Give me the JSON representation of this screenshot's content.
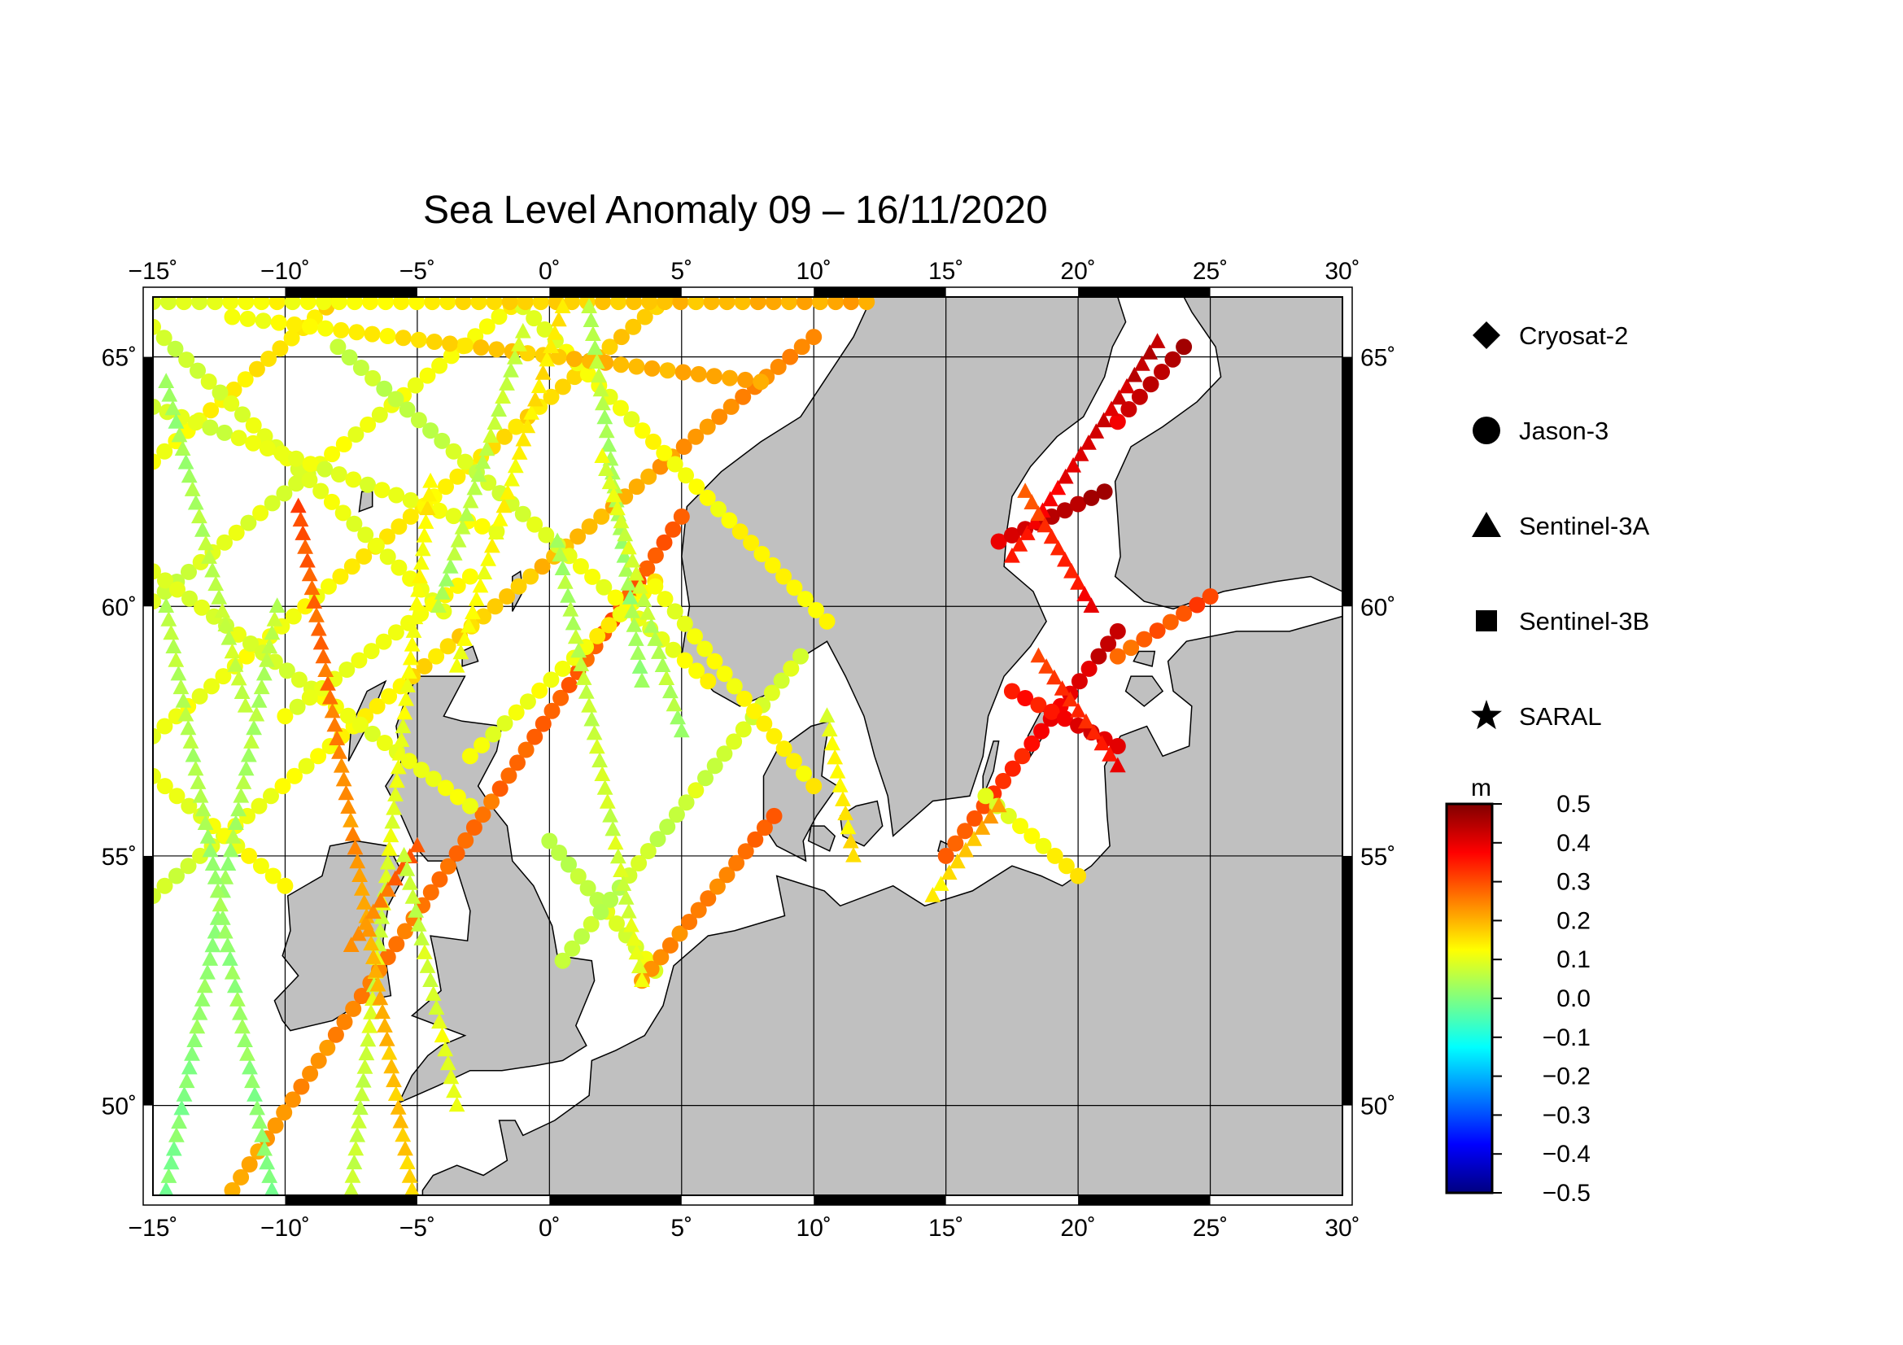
{
  "map": {
    "title": "Sea Level Anomaly 09 – 16/11/2020",
    "lon_range": [
      -15,
      30
    ],
    "lat_range": [
      48.2,
      66.2
    ],
    "lon_ticks": [
      {
        "value": -15,
        "label": "−15˚"
      },
      {
        "value": -10,
        "label": "−10˚"
      },
      {
        "value": -5,
        "label": "−5˚"
      },
      {
        "value": 0,
        "label": "0˚"
      },
      {
        "value": 5,
        "label": "5˚"
      },
      {
        "value": 10,
        "label": "10˚"
      },
      {
        "value": 15,
        "label": "15˚"
      },
      {
        "value": 20,
        "label": "20˚"
      },
      {
        "value": 25,
        "label": "25˚"
      },
      {
        "value": 30,
        "label": "30˚"
      }
    ],
    "lat_ticks": [
      {
        "value": 50,
        "label": "50˚"
      },
      {
        "value": 55,
        "label": "55˚"
      },
      {
        "value": 60,
        "label": "60˚"
      },
      {
        "value": 65,
        "label": "65˚"
      }
    ],
    "colors": {
      "sea": "#ffffff",
      "land": "#c0c0c0",
      "grid": "#000000"
    }
  },
  "legend": {
    "items": [
      {
        "symbol": "diamond",
        "label": "Cryosat-2"
      },
      {
        "symbol": "circle",
        "label": "Jason-3"
      },
      {
        "symbol": "triangle",
        "label": "Sentinel-3A"
      },
      {
        "symbol": "square",
        "label": "Sentinel-3B"
      },
      {
        "symbol": "star",
        "label": "SARAL"
      }
    ]
  },
  "colorbar": {
    "unit": "m",
    "min": -0.5,
    "max": 0.5,
    "ticks": [
      "0.5",
      "0.4",
      "0.3",
      "0.2",
      "0.1",
      "0.0",
      "−0.1",
      "−0.2",
      "−0.3",
      "−0.4",
      "−0.5"
    ],
    "stops": [
      "#000080",
      "#0000ff",
      "#0080ff",
      "#00ffff",
      "#80ff80",
      "#ffff00",
      "#ff8000",
      "#ff0000",
      "#800000"
    ]
  },
  "chart_data": {
    "type": "scatter",
    "title": "Sea Level Anomaly 09 – 16/11/2020",
    "unit": "m",
    "tracks": [
      {
        "mission": "Jason-3",
        "from": [
          -15,
          54.2
        ],
        "to": [
          10,
          65.4
        ],
        "sla": [
          0.08,
          0.26
        ]
      },
      {
        "mission": "Jason-3",
        "from": [
          -15,
          57.4
        ],
        "to": [
          4.5,
          66.2
        ],
        "sla": [
          0.1,
          0.18
        ]
      },
      {
        "mission": "Jason-3",
        "from": [
          -15,
          60.1
        ],
        "to": [
          -1,
          66.2
        ],
        "sla": [
          0.08,
          0.14
        ]
      },
      {
        "mission": "Jason-3",
        "from": [
          -15,
          62.9
        ],
        "to": [
          -8,
          66.2
        ],
        "sla": [
          0.12,
          0.16
        ]
      },
      {
        "mission": "Jason-3",
        "from": [
          -12,
          48.3
        ],
        "to": [
          5,
          61.8
        ],
        "sla": [
          0.22,
          0.3
        ]
      },
      {
        "mission": "Jason-3",
        "from": [
          -15,
          65.6
        ],
        "to": [
          -4,
          59.9
        ],
        "sla": [
          0.08,
          0.12
        ]
      },
      {
        "mission": "Jason-3",
        "from": [
          -8,
          65.2
        ],
        "to": [
          6,
          58.5
        ],
        "sla": [
          0.06,
          0.12
        ]
      },
      {
        "mission": "Jason-3",
        "from": [
          -1,
          66.0
        ],
        "to": [
          10.5,
          59.7
        ],
        "sla": [
          0.1,
          0.14
        ]
      },
      {
        "mission": "Jason-3",
        "from": [
          -15,
          60.7
        ],
        "to": [
          -3,
          56.0
        ],
        "sla": [
          0.08,
          0.12
        ]
      },
      {
        "mission": "Jason-3",
        "from": [
          -15,
          56.6
        ],
        "to": [
          -10,
          54.4
        ],
        "sla": [
          0.1,
          0.14
        ]
      },
      {
        "mission": "Jason-3",
        "from": [
          -15,
          64.0
        ],
        "to": [
          -2,
          61.5
        ],
        "sla": [
          0.08,
          0.12
        ]
      },
      {
        "mission": "Jason-3",
        "from": [
          -15,
          66.1
        ],
        "to": [
          12,
          66.1
        ],
        "sla": [
          0.1,
          0.22
        ]
      },
      {
        "mission": "Jason-3",
        "from": [
          -12,
          65.8
        ],
        "to": [
          8,
          64.5
        ],
        "sla": [
          0.12,
          0.22
        ]
      },
      {
        "mission": "Jason-3",
        "from": [
          0,
          55.3
        ],
        "to": [
          4,
          52.7
        ],
        "sla": [
          0.06,
          0.1
        ]
      },
      {
        "mission": "Jason-3",
        "from": [
          0.5,
          52.9
        ],
        "to": [
          9.5,
          59.0
        ],
        "sla": [
          0.06,
          0.1
        ]
      },
      {
        "mission": "Jason-3",
        "from": [
          3.5,
          52.5
        ],
        "to": [
          8.5,
          55.8
        ],
        "sla": [
          0.22,
          0.28
        ]
      },
      {
        "mission": "Jason-3",
        "from": [
          -3,
          57.0
        ],
        "to": [
          4,
          60.5
        ],
        "sla": [
          0.1,
          0.14
        ]
      },
      {
        "mission": "Jason-3",
        "from": [
          4,
          60.4
        ],
        "to": [
          10,
          56.4
        ],
        "sla": [
          0.1,
          0.14
        ]
      },
      {
        "mission": "Jason-3",
        "from": [
          -10,
          57.8
        ],
        "to": [
          -3,
          60.6
        ],
        "sla": [
          0.1,
          0.14
        ]
      },
      {
        "mission": "Jason-3",
        "from": [
          15,
          55.0
        ],
        "to": [
          21.5,
          59.5
        ],
        "sla": [
          0.28,
          0.44
        ]
      },
      {
        "mission": "Jason-3",
        "from": [
          16.5,
          56.2
        ],
        "to": [
          20,
          54.6
        ],
        "sla": [
          0.1,
          0.14
        ]
      },
      {
        "mission": "Jason-3",
        "from": [
          17,
          61.3
        ],
        "to": [
          21,
          62.3
        ],
        "sla": [
          0.4,
          0.46
        ]
      },
      {
        "mission": "Jason-3",
        "from": [
          17.5,
          58.3
        ],
        "to": [
          21.5,
          57.2
        ],
        "sla": [
          0.34,
          0.42
        ]
      },
      {
        "mission": "Jason-3",
        "from": [
          21.5,
          59.0
        ],
        "to": [
          25,
          60.2
        ],
        "sla": [
          0.26,
          0.32
        ]
      },
      {
        "mission": "Jason-3",
        "from": [
          21.5,
          63.7
        ],
        "to": [
          24,
          65.2
        ],
        "sla": [
          0.4,
          0.46
        ]
      },
      {
        "mission": "Sentinel-3A",
        "from": [
          -14.5,
          48.3
        ],
        "to": [
          -10.3,
          60.0
        ],
        "sla": [
          0.0,
          0.06
        ]
      },
      {
        "mission": "Sentinel-3A",
        "from": [
          -10.5,
          48.3
        ],
        "to": [
          -14.5,
          60.0
        ],
        "sla": [
          0.0,
          0.06
        ]
      },
      {
        "mission": "Sentinel-3A",
        "from": [
          -7.5,
          48.3
        ],
        "to": [
          -4.5,
          62.5
        ],
        "sla": [
          0.06,
          0.14
        ]
      },
      {
        "mission": "Sentinel-3A",
        "from": [
          -5.2,
          48.3
        ],
        "to": [
          -9.5,
          62.0
        ],
        "sla": [
          0.16,
          0.3
        ]
      },
      {
        "mission": "Sentinel-3A",
        "from": [
          -4.2,
          60.0
        ],
        "to": [
          -1,
          65.5
        ],
        "sla": [
          0.04,
          0.08
        ]
      },
      {
        "mission": "Sentinel-3A",
        "from": [
          -3.5,
          58.8
        ],
        "to": [
          0.5,
          66.0
        ],
        "sla": [
          0.1,
          0.16
        ]
      },
      {
        "mission": "Sentinel-3A",
        "from": [
          0.3,
          61.3
        ],
        "to": [
          3.5,
          52.5
        ],
        "sla": [
          0.04,
          0.1
        ]
      },
      {
        "mission": "Sentinel-3A",
        "from": [
          3.5,
          58.5
        ],
        "to": [
          1.5,
          66.0
        ],
        "sla": [
          0.02,
          0.06
        ]
      },
      {
        "mission": "Sentinel-3A",
        "from": [
          5,
          57.5
        ],
        "to": [
          2,
          63.0
        ],
        "sla": [
          0.04,
          0.1
        ]
      },
      {
        "mission": "Sentinel-3A",
        "from": [
          -7.5,
          53.2
        ],
        "to": [
          -5.0,
          55.2
        ],
        "sla": [
          0.22,
          0.3
        ]
      },
      {
        "mission": "Sentinel-3A",
        "from": [
          -14.5,
          64.5
        ],
        "to": [
          -11.5,
          58.0
        ],
        "sla": [
          0.02,
          0.08
        ]
      },
      {
        "mission": "Sentinel-3A",
        "from": [
          -5.5,
          55.0
        ],
        "to": [
          -3.5,
          50.0
        ],
        "sla": [
          0.06,
          0.12
        ]
      },
      {
        "mission": "Sentinel-3A",
        "from": [
          17.5,
          61.0
        ],
        "to": [
          23,
          65.3
        ],
        "sla": [
          0.36,
          0.44
        ]
      },
      {
        "mission": "Sentinel-3A",
        "from": [
          18.5,
          59.0
        ],
        "to": [
          21.5,
          56.8
        ],
        "sla": [
          0.3,
          0.38
        ]
      },
      {
        "mission": "Sentinel-3A",
        "from": [
          18,
          62.3
        ],
        "to": [
          20.5,
          60.0
        ],
        "sla": [
          0.3,
          0.38
        ]
      },
      {
        "mission": "Sentinel-3A",
        "from": [
          14.5,
          54.2
        ],
        "to": [
          17,
          56.0
        ],
        "sla": [
          0.14,
          0.22
        ]
      },
      {
        "mission": "Sentinel-3A",
        "from": [
          10.5,
          57.8
        ],
        "to": [
          11.5,
          55.0
        ],
        "sla": [
          0.1,
          0.16
        ]
      }
    ]
  }
}
